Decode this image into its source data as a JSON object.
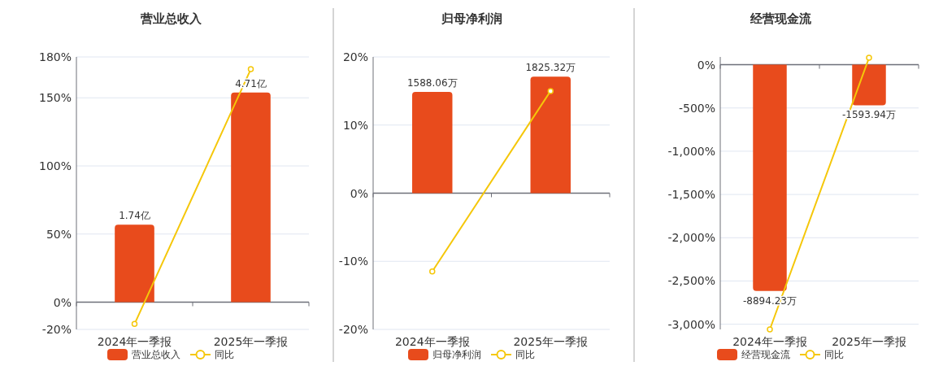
{
  "chart_data": [
    {
      "type": "bar",
      "title": "营业总收入",
      "categories": [
        "2024年一季报",
        "2025年一季报"
      ],
      "series": [
        {
          "name": "营业总收入",
          "axis": "y2",
          "color": "#e84b1c",
          "values": [
            1.74,
            4.71
          ],
          "value_labels": [
            "1.74亿",
            "4.71亿"
          ]
        },
        {
          "name": "同比",
          "type": "line",
          "color": "#f5c70a",
          "values": [
            -16,
            171
          ]
        }
      ],
      "ylim": [
        -20,
        180
      ],
      "yticks": [
        {
          "value": -20,
          "label": "-20%"
        },
        {
          "value": 0,
          "label": "0%"
        },
        {
          "value": 50,
          "label": "50%"
        },
        {
          "value": 100,
          "label": "100%"
        },
        {
          "value": 150,
          "label": "150%"
        },
        {
          "value": 180,
          "label": "180%"
        }
      ],
      "grid": "y",
      "legend": "bottom",
      "marker": "circle"
    },
    {
      "type": "bar",
      "title": "归母净利润",
      "categories": [
        "2024年一季报",
        "2025年一季报"
      ],
      "series": [
        {
          "name": "归母净利润",
          "axis": "y2",
          "color": "#e84b1c",
          "values": [
            1588.06,
            1825.32
          ],
          "value_labels": [
            "1588.06万",
            "1825.32万"
          ]
        },
        {
          "name": "同比",
          "type": "line",
          "color": "#f5c70a",
          "values": [
            -11.5,
            15
          ]
        }
      ],
      "ylim": [
        -20,
        20
      ],
      "yticks": [
        {
          "value": -20,
          "label": "-20%"
        },
        {
          "value": -10,
          "label": "-10%"
        },
        {
          "value": 0,
          "label": "0%"
        },
        {
          "value": 10,
          "label": "10%"
        },
        {
          "value": 20,
          "label": "20%"
        }
      ],
      "grid": "y",
      "legend": "bottom",
      "marker": "circle"
    },
    {
      "type": "bar",
      "title": "经营现金流",
      "categories": [
        "2024年一季报",
        "2025年一季报"
      ],
      "series": [
        {
          "name": "经营现金流",
          "axis": "y2",
          "color": "#e84b1c",
          "values": [
            -8894.23,
            -1593.94
          ],
          "value_labels": [
            "-8894.23万",
            "-1593.94万"
          ]
        },
        {
          "name": "同比",
          "type": "line",
          "color": "#f5c70a",
          "values": [
            -3060,
            80
          ]
        }
      ],
      "ylim": [
        -3060,
        90
      ],
      "yticks": [
        {
          "value": -3000,
          "label": "-3,000%"
        },
        {
          "value": -2500,
          "label": "-2,500%"
        },
        {
          "value": -2000,
          "label": "-2,000%"
        },
        {
          "value": -1500,
          "label": "-1,500%"
        },
        {
          "value": -1000,
          "label": "-1,000%"
        },
        {
          "value": -500,
          "label": "-500%"
        },
        {
          "value": 0,
          "label": "0%"
        }
      ],
      "grid": "y",
      "legend": "bottom",
      "marker": "circle"
    }
  ]
}
